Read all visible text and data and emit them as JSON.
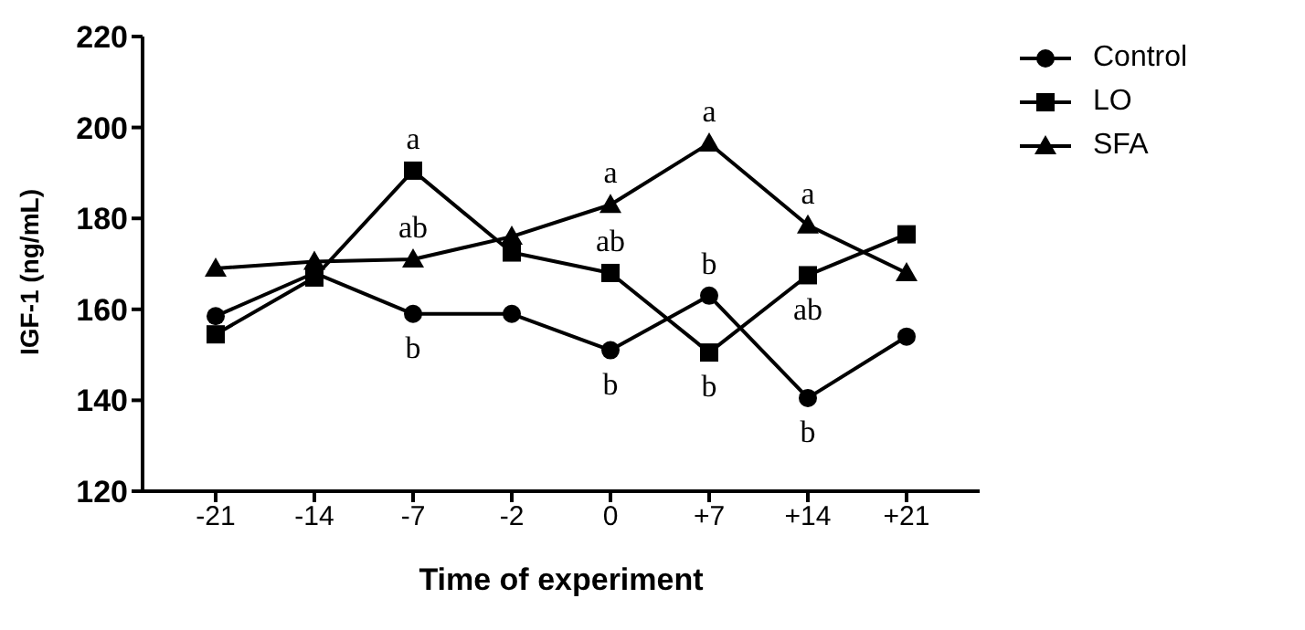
{
  "chart_data": {
    "type": "line",
    "xlabel": "Time of experiment",
    "ylabel": "IGF-1 (ng/mL)",
    "categories": [
      "-21",
      "-14",
      "-7",
      "-2",
      "0",
      "+7",
      "+14",
      "+21"
    ],
    "series": [
      {
        "name": "Control",
        "color": "#000000",
        "marker": "circle",
        "values": [
          158.5,
          168,
          159,
          159,
          151,
          163,
          140.5,
          154
        ]
      },
      {
        "name": "LO",
        "color": "#000000",
        "marker": "square",
        "values": [
          154.5,
          167,
          190.5,
          172.5,
          168,
          150.5,
          167.5,
          176.5
        ]
      },
      {
        "name": "SFA",
        "color": "#000000",
        "marker": "triangle",
        "values": [
          169,
          170.5,
          171,
          176,
          183,
          196.5,
          178.5,
          168
        ]
      }
    ],
    "annotations": [
      {
        "text": "a",
        "x": "-7",
        "y": 190.5
      },
      {
        "text": "ab",
        "x": "-7",
        "y": 171
      },
      {
        "text": "b",
        "x": "-7",
        "y": 159
      },
      {
        "text": "a",
        "x": "0",
        "y": 183
      },
      {
        "text": "ab",
        "x": "0",
        "y": 168
      },
      {
        "text": "b",
        "x": "0",
        "y": 151
      },
      {
        "text": "a",
        "x": "+7",
        "y": 196.5
      },
      {
        "text": "b",
        "x": "+7",
        "y": 163
      },
      {
        "text": "b",
        "x": "+7",
        "y": 150.5
      },
      {
        "text": "a",
        "x": "+14",
        "y": 178.5
      },
      {
        "text": "ab",
        "x": "+14",
        "y": 167.5
      },
      {
        "text": "b",
        "x": "+14",
        "y": 140.5
      }
    ],
    "ylim": [
      120,
      220
    ],
    "yticks": [
      120,
      140,
      160,
      180,
      200,
      220
    ],
    "grid": false,
    "legend": "top right",
    "line_style": "solid"
  }
}
